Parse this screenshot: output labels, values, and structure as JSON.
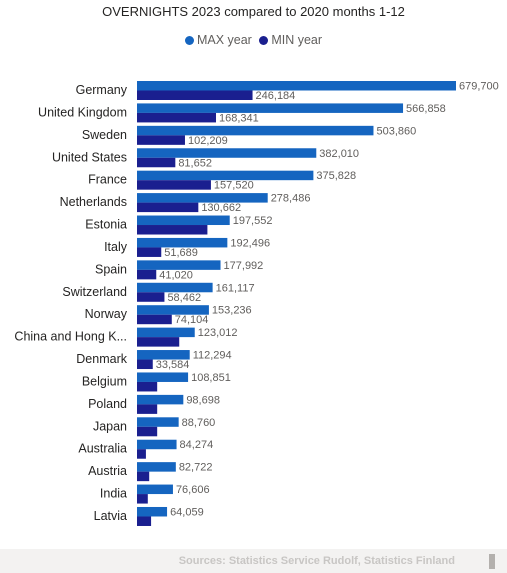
{
  "colors": {
    "max": "#1565c0",
    "min": "#1a1f8f"
  },
  "chart_data": {
    "type": "bar",
    "orientation": "horizontal",
    "title": "OVERNIGHTS 2023 compared to 2020 months 1-12",
    "legend_position": "top-center",
    "xlim": [
      0,
      679700
    ],
    "categories": [
      "Germany",
      "United Kingdom",
      "Sweden",
      "United States",
      "France",
      "Netherlands",
      "Estonia",
      "Italy",
      "Spain",
      "Switzerland",
      "Norway",
      "China and Hong K...",
      "Denmark",
      "Belgium",
      "Poland",
      "Japan",
      "Australia",
      "Austria",
      "India",
      "Latvia"
    ],
    "series": [
      {
        "name": "MAX year",
        "values": [
          679700,
          566858,
          503860,
          382010,
          375828,
          278486,
          197552,
          192496,
          177992,
          161117,
          153236,
          123012,
          112294,
          108851,
          98698,
          88760,
          84274,
          82722,
          76606,
          64059
        ],
        "labels": [
          "679,700",
          "566,858",
          "503,860",
          "382,010",
          "375,828",
          "278,486",
          "197,552",
          "192,496",
          "177,992",
          "161,117",
          "153,236",
          "123,012",
          "112,294",
          "108,851",
          "98,698",
          "88,760",
          "84,274",
          "82,722",
          "76,606",
          "64,059"
        ]
      },
      {
        "name": "MIN year",
        "values": [
          246184,
          168341,
          102209,
          81652,
          157520,
          130662,
          150000,
          51689,
          41020,
          58462,
          74104,
          90000,
          33584,
          43000,
          43000,
          43000,
          19000,
          26000,
          23000,
          30000
        ],
        "labels": [
          "246,184",
          "168,341",
          "102,209",
          "81,652",
          "157,520",
          "130,662",
          "",
          "51,689",
          "41,020",
          "58,462",
          "74,104",
          "",
          "33,584",
          "",
          "",
          "",
          "",
          "",
          "",
          ""
        ]
      }
    ]
  },
  "footer": {
    "source": "Sources: Statistics Service Rudolf, Statistics Finland"
  }
}
